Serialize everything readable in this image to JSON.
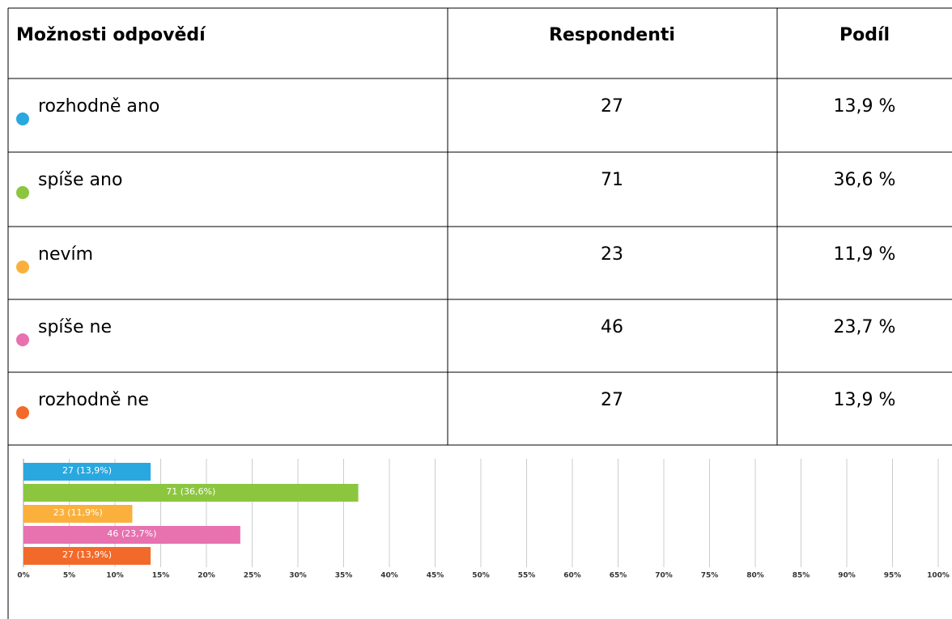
{
  "table": {
    "header": [
      "Možnosti odpovědí",
      "Respondenti",
      "Podíl"
    ],
    "rows": [
      [
        "rozhodně ano",
        27,
        "13,9 %"
      ],
      [
        "spíše ano",
        71,
        "36,6 %"
      ],
      [
        "nevím",
        23,
        "11,9 %"
      ],
      [
        "spíše ne",
        46,
        "23,7 %"
      ],
      [
        "rozhodně ne",
        27,
        "13,9 %"
      ]
    ]
  },
  "chart_data": {
    "type": "bar",
    "orientation": "horizontal",
    "values": [
      13.9,
      36.6,
      11.9,
      23.7,
      13.9
    ],
    "value_labels": [
      "27 (13,9%)",
      "71 (36,6%)",
      "23 (11,9%)",
      "46 (23,7%)",
      "27 (13,9%)"
    ],
    "colors": [
      "#29a8e0",
      "#8cc63f",
      "#fbb03b",
      "#e871b0",
      "#f26a2a"
    ],
    "xlim": [
      0,
      100
    ],
    "xticks": [
      {
        "value": 0,
        "label": "0%"
      },
      {
        "value": 5,
        "label": "5%"
      },
      {
        "value": 10,
        "label": "10%"
      },
      {
        "value": 15,
        "label": "15%"
      },
      {
        "value": 20,
        "label": "20%"
      },
      {
        "value": 25,
        "label": "25%"
      },
      {
        "value": 30,
        "label": "30%"
      },
      {
        "value": 35,
        "label": "35%"
      },
      {
        "value": 40,
        "label": "40%"
      },
      {
        "value": 45,
        "label": "45%"
      },
      {
        "value": 50,
        "label": "50%"
      },
      {
        "value": 55,
        "label": "55%"
      },
      {
        "value": 60,
        "label": "60%"
      },
      {
        "value": 65,
        "label": "65%"
      },
      {
        "value": 70,
        "label": "70%"
      },
      {
        "value": 75,
        "label": "75%"
      },
      {
        "value": 80,
        "label": "80%"
      },
      {
        "value": 85,
        "label": "85%"
      },
      {
        "value": 90,
        "label": "90%"
      },
      {
        "value": 95,
        "label": "95%"
      },
      {
        "value": 100,
        "label": "100%"
      }
    ],
    "grid": true
  }
}
